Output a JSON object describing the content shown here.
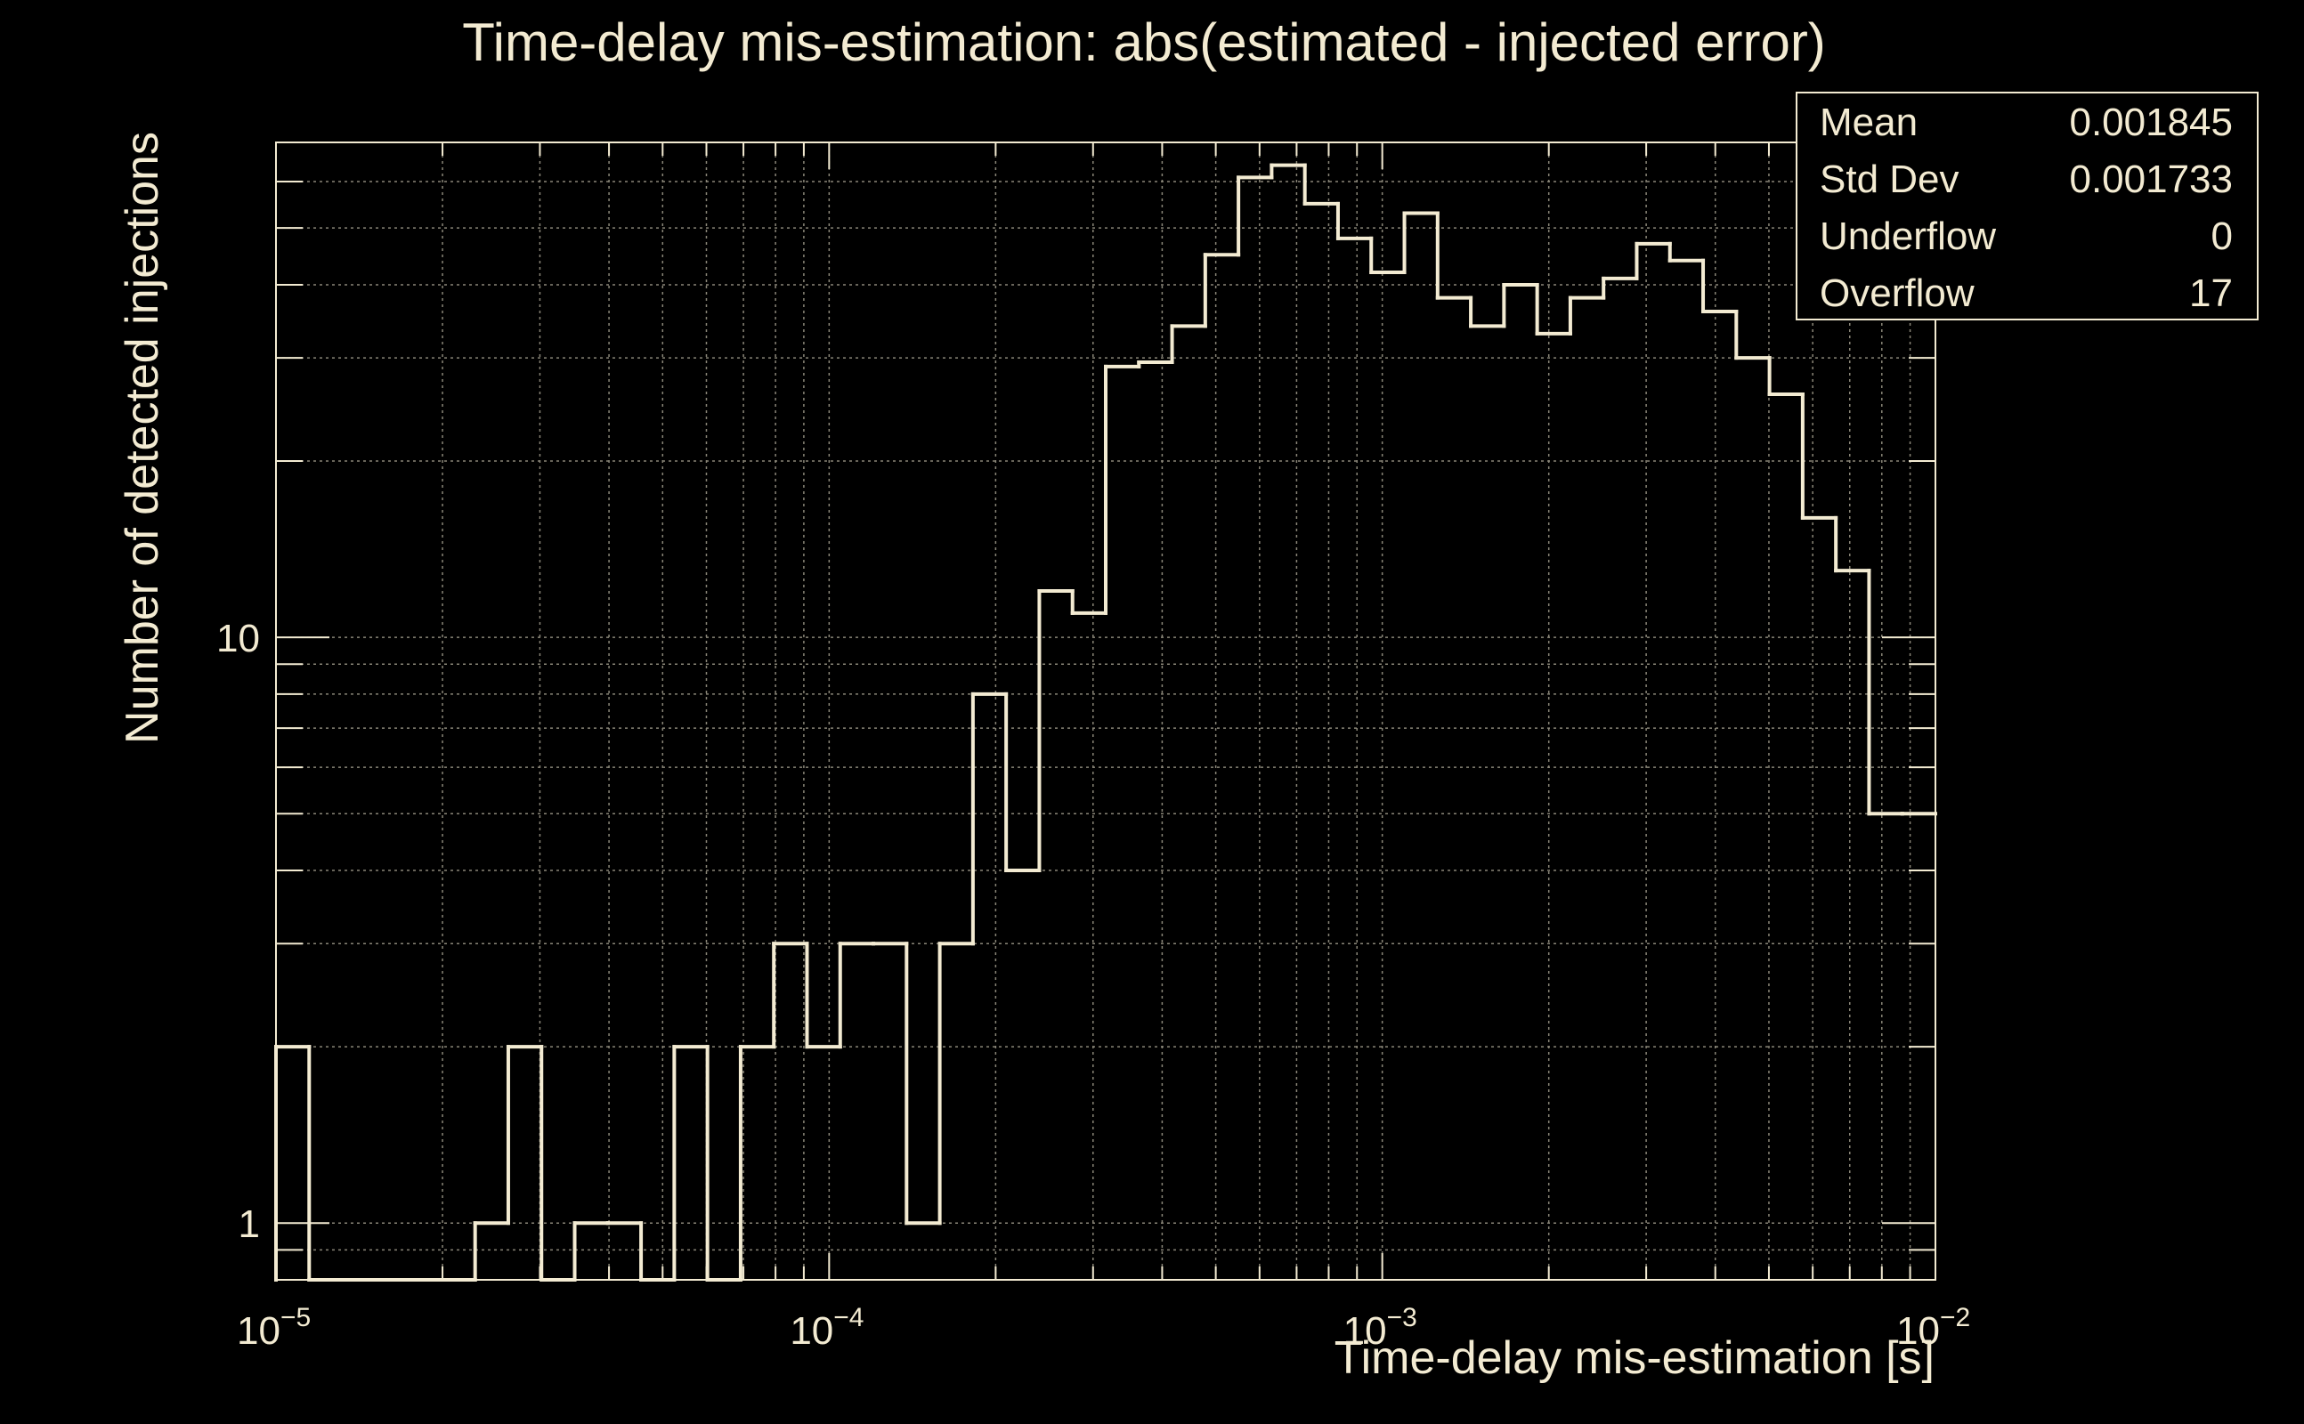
{
  "chart_data": {
    "type": "histogram",
    "title": "Time-delay mis-estimation: abs(estimated - injected error)",
    "xlabel": "Time-delay mis-estimation [s]",
    "ylabel": "Number of detected injections",
    "x_scale": "log",
    "y_scale": "log",
    "xlim": [
      1e-05,
      0.01
    ],
    "ylim": [
      0.8,
      70
    ],
    "grid": true,
    "x_ticks": [
      {
        "base": "10",
        "exp": "−5"
      },
      {
        "base": "10",
        "exp": "−4"
      },
      {
        "base": "10",
        "exp": "−3"
      },
      {
        "base": "10",
        "exp": "−2"
      }
    ],
    "y_ticks": [
      "1",
      "10"
    ],
    "bins": 50,
    "values": [
      2,
      0,
      0,
      0,
      0,
      0,
      1,
      2,
      0,
      1,
      1,
      0,
      2,
      0,
      2,
      3,
      2,
      3,
      3,
      1,
      3,
      8,
      4,
      12,
      11,
      29,
      29.5,
      34,
      45,
      61,
      64,
      55,
      48,
      42,
      53,
      38,
      34,
      40,
      33,
      38,
      41,
      47,
      44,
      36,
      30,
      26,
      16,
      13,
      5,
      5
    ],
    "stats": {
      "rows": [
        {
          "label": "Mean",
          "value": "0.001845"
        },
        {
          "label": "Std Dev",
          "value": "0.001733"
        },
        {
          "label": "Underflow",
          "value": "0"
        },
        {
          "label": "Overflow",
          "value": "17"
        }
      ]
    },
    "colors": {
      "background": "#000000",
      "foreground": "#f3ebd2",
      "grid": "#8a8678"
    }
  }
}
